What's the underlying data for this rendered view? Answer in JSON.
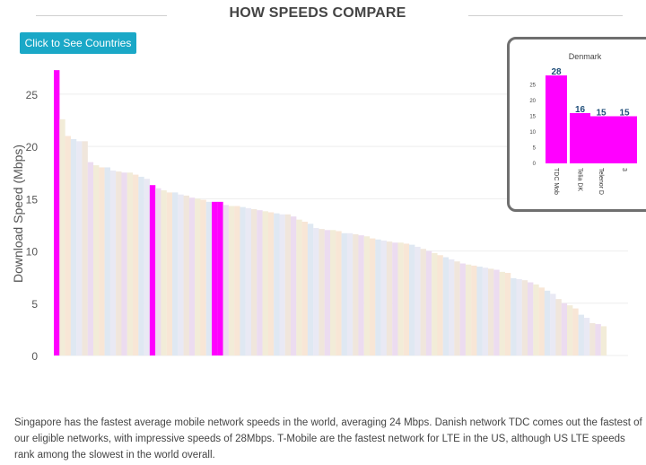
{
  "header": {
    "title": "HOW SPEEDS COMPARE"
  },
  "controls": {
    "countries_button_label": "Click to See Countries"
  },
  "colors": {
    "button_bg": "#1aa8c7",
    "highlight": "#ff00ff",
    "muted_palette": [
      "#ecdcf0",
      "#f2ecd8",
      "#f8e6d6",
      "#dfe8f2",
      "#e9e9f4",
      "#f0e6dc"
    ]
  },
  "chart_data": [
    {
      "type": "bar",
      "ylabel": "Download Speed (Mbps)",
      "ylim": [
        0,
        28
      ],
      "yticks": [
        0,
        5,
        10,
        15,
        20,
        25
      ],
      "grid": true,
      "highlighted_indices": [
        0,
        17,
        28,
        29
      ],
      "values": [
        27.3,
        22.6,
        21.0,
        20.7,
        20.5,
        20.5,
        18.5,
        18.2,
        18.0,
        18.0,
        17.7,
        17.6,
        17.5,
        17.5,
        17.3,
        17.1,
        16.9,
        16.3,
        16.0,
        15.8,
        15.6,
        15.6,
        15.4,
        15.3,
        15.1,
        15.0,
        14.9,
        14.7,
        14.7,
        14.7,
        14.4,
        14.3,
        14.3,
        14.2,
        14.1,
        14.0,
        13.9,
        13.8,
        13.7,
        13.6,
        13.5,
        13.5,
        13.3,
        13.0,
        12.8,
        12.6,
        12.2,
        12.1,
        12.0,
        12.0,
        11.9,
        11.7,
        11.7,
        11.6,
        11.5,
        11.4,
        11.2,
        11.1,
        11.0,
        10.9,
        10.8,
        10.8,
        10.7,
        10.6,
        10.4,
        10.2,
        10.0,
        9.8,
        9.6,
        9.4,
        9.2,
        9.0,
        8.8,
        8.7,
        8.6,
        8.5,
        8.4,
        8.3,
        8.2,
        8.0,
        7.9,
        7.4,
        7.3,
        7.2,
        7.0,
        6.8,
        6.5,
        6.2,
        5.9,
        5.4,
        5.0,
        4.8,
        4.5,
        3.9,
        3.6,
        3.1,
        3.0,
        2.8
      ]
    },
    {
      "type": "bar",
      "title": "Denmark",
      "ylim": [
        0,
        30
      ],
      "yticks": [
        0,
        5,
        10,
        15,
        20,
        25
      ],
      "categories": [
        "TDC Mob",
        "Telia DK",
        "Telenor D",
        "3"
      ],
      "values": [
        28,
        16,
        15,
        15
      ],
      "data_labels": [
        "28",
        "16",
        "15",
        "15"
      ]
    }
  ],
  "description": "Singapore has the fastest average mobile network speeds in the world, averaging 24 Mbps. Danish network TDC comes out the fastest of our eligible networks, with impressive speeds of 28Mbps. T-Mobile are the fastest network for LTE in the US, although US LTE speeds rank among the slowest in the world overall."
}
